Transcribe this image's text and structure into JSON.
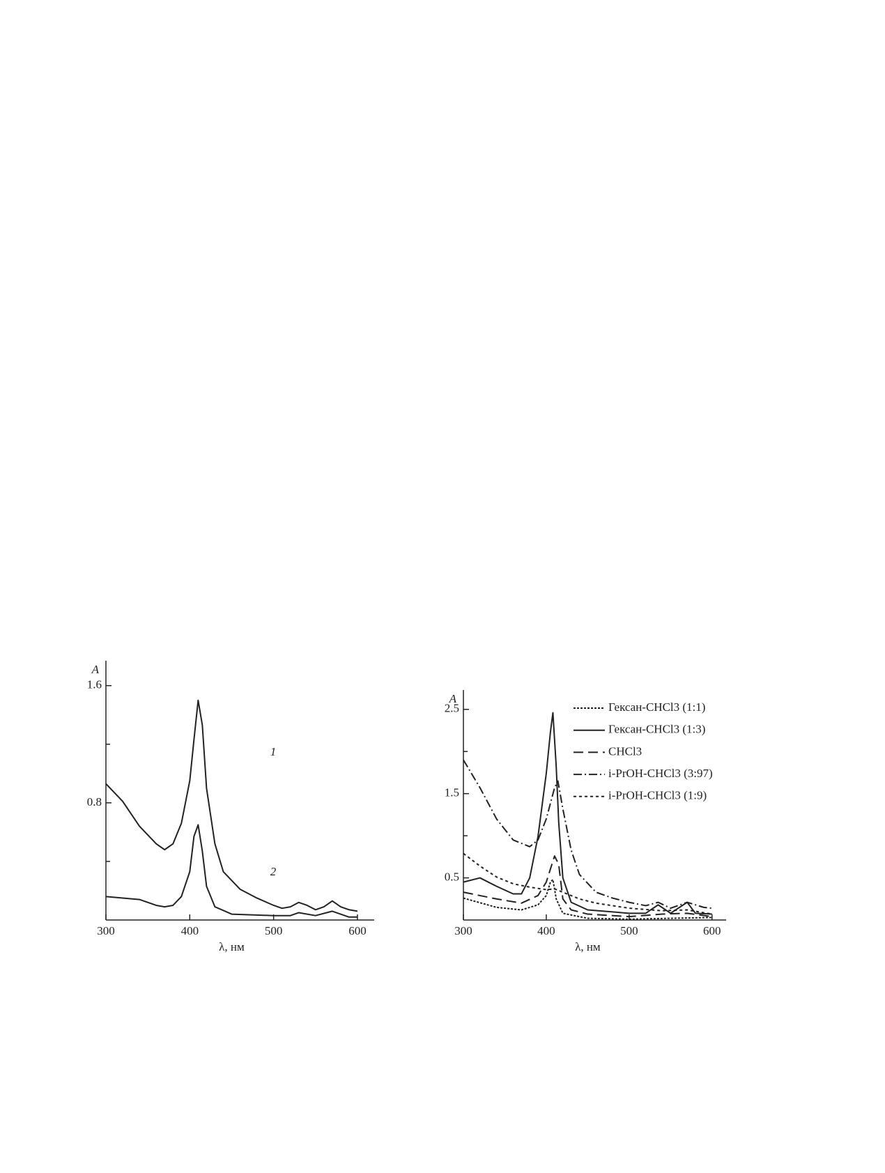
{
  "chart_data": [
    {
      "type": "line",
      "ylabel": "A",
      "xlabel": "λ, нм",
      "xlim": [
        300,
        620
      ],
      "xticks": [
        300,
        400,
        500,
        600
      ],
      "ylim": [
        0,
        1.77
      ],
      "yticks": [
        0.8,
        1.6
      ],
      "yminor": [
        0.4,
        1.2
      ],
      "series": [
        {
          "label": "1",
          "color": "#222",
          "style": "solid",
          "x": [
            300,
            320,
            340,
            360,
            370,
            380,
            390,
            400,
            405,
            410,
            415,
            420,
            430,
            440,
            460,
            480,
            500,
            510,
            520,
            530,
            540,
            550,
            560,
            570,
            580,
            590,
            600
          ],
          "values": [
            0.93,
            0.81,
            0.64,
            0.52,
            0.48,
            0.52,
            0.66,
            0.95,
            1.23,
            1.5,
            1.33,
            0.9,
            0.52,
            0.33,
            0.21,
            0.15,
            0.1,
            0.08,
            0.09,
            0.12,
            0.1,
            0.07,
            0.09,
            0.13,
            0.09,
            0.07,
            0.06
          ]
        },
        {
          "label": "2",
          "color": "#222",
          "style": "solid",
          "x": [
            300,
            340,
            360,
            370,
            380,
            390,
            400,
            405,
            410,
            415,
            420,
            430,
            450,
            500,
            520,
            530,
            550,
            570,
            590,
            600
          ],
          "values": [
            0.16,
            0.14,
            0.1,
            0.09,
            0.1,
            0.16,
            0.33,
            0.57,
            0.65,
            0.47,
            0.23,
            0.09,
            0.04,
            0.03,
            0.03,
            0.05,
            0.03,
            0.06,
            0.02,
            0.02
          ]
        }
      ]
    },
    {
      "type": "line",
      "ylabel": "A",
      "xlabel": "λ, нм",
      "legend": "upper right",
      "xlim": [
        300,
        617
      ],
      "xticks": [
        300,
        400,
        500,
        600
      ],
      "ylim": [
        0,
        2.73
      ],
      "yticks": [
        0.5,
        1.5,
        2.5
      ],
      "yminor": [
        1.0,
        2.0
      ],
      "series": [
        {
          "name": "Гексан-CHCl3 (1:1)",
          "color": "#222",
          "style": "fine-dotted",
          "x": [
            300,
            340,
            370,
            390,
            400,
            405,
            408,
            412,
            420,
            450,
            500,
            600
          ],
          "values": [
            0.26,
            0.15,
            0.12,
            0.18,
            0.29,
            0.45,
            0.48,
            0.25,
            0.08,
            0.02,
            0.01,
            0.03
          ]
        },
        {
          "name": "Гексан-CHCl3 (1:3)",
          "color": "#222",
          "style": "solid",
          "x": [
            300,
            320,
            340,
            360,
            370,
            380,
            390,
            400,
            405,
            408,
            412,
            415,
            420,
            430,
            450,
            500,
            520,
            535,
            550,
            570,
            580,
            600
          ],
          "values": [
            0.45,
            0.5,
            0.4,
            0.31,
            0.31,
            0.5,
            0.99,
            1.74,
            2.23,
            2.46,
            1.82,
            1.16,
            0.5,
            0.21,
            0.12,
            0.08,
            0.08,
            0.18,
            0.08,
            0.21,
            0.08,
            0.07
          ]
        },
        {
          "name": "CHCl3",
          "color": "#222",
          "style": "dashed",
          "x": [
            300,
            340,
            370,
            390,
            400,
            410,
            415,
            420,
            430,
            450,
            500,
            540,
            570,
            600
          ],
          "values": [
            0.33,
            0.25,
            0.2,
            0.29,
            0.45,
            0.76,
            0.66,
            0.25,
            0.12,
            0.07,
            0.04,
            0.07,
            0.08,
            0.04
          ]
        },
        {
          "name": "i-PrOH-CHCl3 (3:97)",
          "color": "#222",
          "style": "dash-dot",
          "x": [
            300,
            320,
            340,
            360,
            380,
            390,
            400,
            410,
            414,
            420,
            430,
            440,
            460,
            480,
            500,
            520,
            535,
            550,
            570,
            590,
            600
          ],
          "values": [
            1.9,
            1.57,
            1.2,
            0.95,
            0.87,
            0.95,
            1.2,
            1.57,
            1.65,
            1.32,
            0.83,
            0.54,
            0.33,
            0.26,
            0.21,
            0.17,
            0.21,
            0.14,
            0.21,
            0.15,
            0.14
          ]
        },
        {
          "name": "i-PrOH-CHCl3 (1:9)",
          "color": "#222",
          "style": "dotted",
          "x": [
            300,
            320,
            340,
            360,
            380,
            400,
            410,
            420,
            440,
            460,
            500,
            540,
            570,
            600
          ],
          "values": [
            0.79,
            0.64,
            0.51,
            0.43,
            0.39,
            0.36,
            0.37,
            0.33,
            0.25,
            0.2,
            0.14,
            0.11,
            0.12,
            0.07
          ]
        }
      ]
    }
  ]
}
